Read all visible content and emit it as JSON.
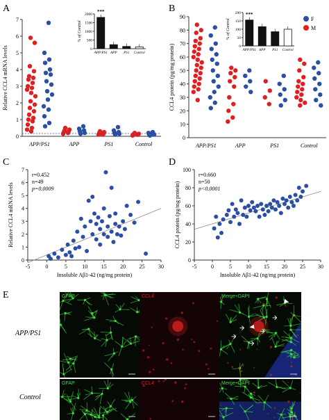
{
  "panels": {
    "A": {
      "letter": "A",
      "ylabel": "Relative CCL4 mRNA levels",
      "yticks": [
        "0",
        "1",
        "2",
        "3",
        "4",
        "5",
        "6",
        "7"
      ],
      "groups": [
        "APP/PS1",
        "APP",
        "PS1",
        "Control"
      ],
      "inset": {
        "ylabel": "% of Control",
        "yticks": [
          "0",
          "500",
          "1000",
          "1500",
          "2000"
        ],
        "categories": [
          "APP/PS1",
          "APP",
          "PS1",
          "Control"
        ],
        "values": [
          1800,
          230,
          130,
          100
        ],
        "sig": "***"
      }
    },
    "B": {
      "letter": "B",
      "ylabel": "CCL4 protein (pg/mg protein)",
      "yticks": [
        "0",
        "10",
        "20",
        "30",
        "40",
        "50",
        "60",
        "70",
        "80",
        "90"
      ],
      "groups": [
        "APP/PS1",
        "APP",
        "PS1",
        "Control"
      ],
      "legend": [
        "F",
        "M"
      ],
      "inset": {
        "ylabel": "% of Control",
        "yticks": [
          "0",
          "50",
          "100",
          "150",
          "200"
        ],
        "categories": [
          "APP/PS1",
          "APP",
          "PS1",
          "Control"
        ],
        "values": [
          155,
          115,
          85,
          100
        ],
        "sig": "***"
      }
    },
    "C": {
      "letter": "C",
      "ylabel": "Relative CCL4 mRNA levels",
      "xlabel": "Insoluble Aβ1-42 (ng/mg protein)",
      "xticks": [
        "-5",
        "0",
        "5",
        "10",
        "15",
        "20",
        "25",
        "30"
      ],
      "yticks": [
        "0",
        "1",
        "2",
        "3",
        "4",
        "5",
        "6",
        "7"
      ],
      "stats": [
        "r=0.452",
        "n=49",
        "p=0.0009"
      ]
    },
    "D": {
      "letter": "D",
      "ylabel": "CCL4 protein (pg/mg protein)",
      "xlabel": "Insoluble Aβ1-42 (ng/mg protein)",
      "xticks": [
        "-5",
        "0",
        "5",
        "10",
        "15",
        "20",
        "25",
        "30"
      ],
      "yticks": [
        "0",
        "20",
        "40",
        "60",
        "80",
        "100"
      ],
      "stats": [
        "r=0.660",
        "n=50",
        "p<0.0001"
      ]
    },
    "E": {
      "letter": "E",
      "rows": [
        "APP/PS1",
        "Control"
      ],
      "cols": [
        "GFAP",
        "CCL4",
        "Merge+DAPI"
      ]
    }
  },
  "colors": {
    "F": "#2a4fa3",
    "M": "#e02020",
    "gfap": "#3fdc3f",
    "ccl4": "#e02020",
    "dapi": "#2040c8"
  },
  "chart_data": [
    {
      "type": "scatter",
      "panel": "A",
      "ylim": [
        0,
        7
      ],
      "categories": [
        "APP/PS1",
        "APP",
        "PS1",
        "Control"
      ],
      "series": [
        {
          "name": "M",
          "values": [
            [
              0,
              5.9
            ],
            [
              0,
              5.6
            ],
            [
              0,
              4.2
            ],
            [
              0,
              3.9
            ],
            [
              0,
              3.6
            ],
            [
              0,
              3.5
            ],
            [
              0,
              3.4
            ],
            [
              0,
              3.2
            ],
            [
              0,
              3.0
            ],
            [
              0,
              2.9
            ],
            [
              0,
              2.8
            ],
            [
              0,
              2.6
            ],
            [
              0,
              2.4
            ],
            [
              0,
              2.1
            ],
            [
              0,
              1.9
            ],
            [
              0,
              1.7
            ],
            [
              0,
              1.5
            ],
            [
              0,
              1.3
            ],
            [
              0,
              1.1
            ],
            [
              0,
              1.0
            ],
            [
              0,
              0.9
            ],
            [
              0,
              0.7
            ],
            [
              0,
              0.5
            ],
            [
              0,
              0.4
            ],
            [
              0,
              0.3
            ],
            [
              1,
              0.5
            ],
            [
              1,
              0.4
            ],
            [
              1,
              0.35
            ],
            [
              1,
              0.3
            ],
            [
              1,
              0.25
            ],
            [
              1,
              0.2
            ],
            [
              1,
              0.15
            ],
            [
              2,
              0.3
            ],
            [
              2,
              0.25
            ],
            [
              2,
              0.2
            ],
            [
              2,
              0.15
            ],
            [
              2,
              0.1
            ],
            [
              2,
              0.1
            ],
            [
              3,
              0.2
            ],
            [
              3,
              0.15
            ],
            [
              3,
              0.15
            ],
            [
              3,
              0.1
            ],
            [
              3,
              0.1
            ],
            [
              3,
              0.1
            ],
            [
              3,
              0.05
            ]
          ]
        },
        {
          "name": "F",
          "values": [
            [
              0,
              6.8
            ],
            [
              0,
              5.0
            ],
            [
              0,
              4.6
            ],
            [
              0,
              4.4
            ],
            [
              0,
              4.0
            ],
            [
              0,
              3.8
            ],
            [
              0,
              3.7
            ],
            [
              0,
              3.3
            ],
            [
              0,
              3.1
            ],
            [
              0,
              2.7
            ],
            [
              0,
              2.5
            ],
            [
              0,
              2.2
            ],
            [
              0,
              1.8
            ],
            [
              0,
              1.6
            ],
            [
              0,
              1.2
            ],
            [
              0,
              0.8
            ],
            [
              0,
              0.6
            ],
            [
              1,
              0.6
            ],
            [
              1,
              0.45
            ],
            [
              1,
              0.35
            ],
            [
              1,
              0.3
            ],
            [
              1,
              0.2
            ],
            [
              1,
              0.15
            ],
            [
              2,
              0.55
            ],
            [
              2,
              0.35
            ],
            [
              2,
              0.25
            ],
            [
              2,
              0.2
            ],
            [
              2,
              0.15
            ],
            [
              2,
              0.1
            ],
            [
              3,
              0.25
            ],
            [
              3,
              0.2
            ],
            [
              3,
              0.15
            ],
            [
              3,
              0.1
            ],
            [
              3,
              0.1
            ],
            [
              3,
              0.05
            ]
          ]
        }
      ]
    },
    {
      "type": "scatter",
      "panel": "B",
      "ylim": [
        0,
        90
      ],
      "categories": [
        "APP/PS1",
        "APP",
        "PS1",
        "Control"
      ],
      "series": [
        {
          "name": "M",
          "values": [
            [
              0,
              84
            ],
            [
              0,
              80
            ],
            [
              0,
              78
            ],
            [
              0,
              74
            ],
            [
              0,
              72
            ],
            [
              0,
              70
            ],
            [
              0,
              68
            ],
            [
              0,
              66
            ],
            [
              0,
              64
            ],
            [
              0,
              62
            ],
            [
              0,
              60
            ],
            [
              0,
              58
            ],
            [
              0,
              56
            ],
            [
              0,
              54
            ],
            [
              0,
              52
            ],
            [
              0,
              50
            ],
            [
              0,
              48
            ],
            [
              0,
              46
            ],
            [
              0,
              44
            ],
            [
              0,
              42
            ],
            [
              0,
              40
            ],
            [
              0,
              38
            ],
            [
              0,
              36
            ],
            [
              0,
              34
            ],
            [
              0,
              28
            ],
            [
              1,
              52
            ],
            [
              1,
              50
            ],
            [
              1,
              48
            ],
            [
              1,
              45
            ],
            [
              1,
              42
            ],
            [
              1,
              38
            ],
            [
              1,
              30
            ],
            [
              1,
              25
            ],
            [
              1,
              20
            ],
            [
              1,
              15
            ],
            [
              1,
              12
            ],
            [
              2,
              42
            ],
            [
              2,
              35
            ],
            [
              2,
              30
            ],
            [
              2,
              25
            ],
            [
              3,
              58
            ],
            [
              3,
              55
            ],
            [
              3,
              50
            ],
            [
              3,
              45
            ],
            [
              3,
              42
            ],
            [
              3,
              40
            ],
            [
              3,
              38
            ],
            [
              3,
              36
            ],
            [
              3,
              34
            ],
            [
              3,
              32
            ],
            [
              3,
              30
            ],
            [
              3,
              28
            ],
            [
              3,
              26
            ],
            [
              3,
              24
            ]
          ]
        },
        {
          "name": "F",
          "values": [
            [
              0,
              82
            ],
            [
              0,
              76
            ],
            [
              0,
              70
            ],
            [
              0,
              66
            ],
            [
              0,
              62
            ],
            [
              0,
              58
            ],
            [
              0,
              55
            ],
            [
              0,
              50
            ],
            [
              0,
              46
            ],
            [
              0,
              42
            ],
            [
              0,
              38
            ],
            [
              0,
              34
            ],
            [
              0,
              30
            ],
            [
              0,
              26
            ],
            [
              0,
              22
            ],
            [
              1,
              50
            ],
            [
              1,
              46
            ],
            [
              1,
              42
            ],
            [
              1,
              38
            ],
            [
              1,
              34
            ],
            [
              2,
              46
            ],
            [
              2,
              40
            ],
            [
              2,
              36
            ],
            [
              2,
              32
            ],
            [
              2,
              28
            ],
            [
              2,
              24
            ],
            [
              3,
              56
            ],
            [
              3,
              52
            ],
            [
              3,
              48
            ],
            [
              3,
              44
            ],
            [
              3,
              40
            ],
            [
              3,
              36
            ],
            [
              3,
              32
            ],
            [
              3,
              28
            ],
            [
              3,
              24
            ]
          ]
        }
      ]
    },
    {
      "type": "scatter",
      "panel": "C",
      "xlim": [
        -5,
        30
      ],
      "ylim": [
        0,
        7
      ],
      "points": [
        [
          0.5,
          0.3
        ],
        [
          1,
          0.1
        ],
        [
          2,
          0.5
        ],
        [
          3,
          0.2
        ],
        [
          4,
          0.8
        ],
        [
          5,
          0.4
        ],
        [
          5.5,
          1.2
        ],
        [
          6,
          0.6
        ],
        [
          6.5,
          0.3
        ],
        [
          7,
          1.5
        ],
        [
          7.5,
          0.9
        ],
        [
          8,
          2.2
        ],
        [
          8.5,
          1.0
        ],
        [
          9,
          3.2
        ],
        [
          9.5,
          1.8
        ],
        [
          10,
          2.6
        ],
        [
          10.5,
          0.7
        ],
        [
          11,
          4.6
        ],
        [
          11.5,
          3.0
        ],
        [
          12,
          2.0
        ],
        [
          12,
          4.9
        ],
        [
          12.5,
          3.6
        ],
        [
          13,
          1.6
        ],
        [
          13,
          2.8
        ],
        [
          13.5,
          3.3
        ],
        [
          14,
          2.4
        ],
        [
          14,
          1.2
        ],
        [
          14.5,
          3.0
        ],
        [
          15,
          2.0
        ],
        [
          15,
          4.0
        ],
        [
          15.5,
          6.8
        ],
        [
          16,
          2.6
        ],
        [
          16,
          1.8
        ],
        [
          16.5,
          3.4
        ],
        [
          17,
          2.2
        ],
        [
          17,
          5.6
        ],
        [
          17.5,
          1.4
        ],
        [
          18,
          2.8
        ],
        [
          18,
          3.6
        ],
        [
          18.5,
          2.0
        ],
        [
          19,
          2.6
        ],
        [
          19.5,
          1.9
        ],
        [
          20,
          3.0
        ],
        [
          20.5,
          2.4
        ],
        [
          21,
          4.2
        ],
        [
          22,
          3.5
        ],
        [
          23,
          2.9
        ],
        [
          24,
          4.5
        ],
        [
          26,
          0.5
        ]
      ],
      "trend": [
        [
          -5,
          -0.2
        ],
        [
          30,
          4.0
        ]
      ]
    },
    {
      "type": "scatter",
      "panel": "D",
      "xlim": [
        -5,
        30
      ],
      "ylim": [
        0,
        100
      ],
      "points": [
        [
          0.5,
          35
        ],
        [
          1,
          48
        ],
        [
          1.5,
          25
        ],
        [
          2,
          40
        ],
        [
          2.5,
          30
        ],
        [
          3,
          45
        ],
        [
          4,
          50
        ],
        [
          4.5,
          55
        ],
        [
          5,
          42
        ],
        [
          5.5,
          62
        ],
        [
          6,
          48
        ],
        [
          6.5,
          56
        ],
        [
          7,
          52
        ],
        [
          7.5,
          40
        ],
        [
          8,
          66
        ],
        [
          8.5,
          50
        ],
        [
          9,
          58
        ],
        [
          9.5,
          48
        ],
        [
          10,
          60
        ],
        [
          10.5,
          55
        ],
        [
          11,
          64
        ],
        [
          11.5,
          58
        ],
        [
          12,
          54
        ],
        [
          12.5,
          60
        ],
        [
          13,
          48
        ],
        [
          13.5,
          62
        ],
        [
          14,
          56
        ],
        [
          14.5,
          50
        ],
        [
          15,
          60
        ],
        [
          15.5,
          54
        ],
        [
          16,
          62
        ],
        [
          16.5,
          58
        ],
        [
          17,
          66
        ],
        [
          17.5,
          56
        ],
        [
          18,
          64
        ],
        [
          18.5,
          60
        ],
        [
          19,
          52
        ],
        [
          19.5,
          68
        ],
        [
          20,
          62
        ],
        [
          20.5,
          66
        ],
        [
          21,
          58
        ],
        [
          21.5,
          70
        ],
        [
          22,
          64
        ],
        [
          22.5,
          60
        ],
        [
          23,
          72
        ],
        [
          23.5,
          66
        ],
        [
          24,
          80
        ],
        [
          24.5,
          70
        ],
        [
          25,
          76
        ],
        [
          26,
          82
        ]
      ],
      "trend": [
        [
          -5,
          34
        ],
        [
          30,
          76
        ]
      ]
    }
  ]
}
